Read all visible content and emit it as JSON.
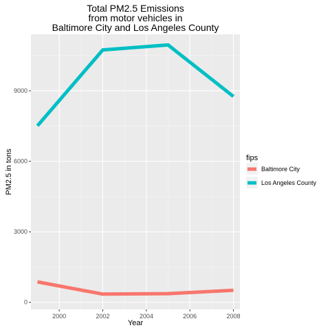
{
  "chart_data": {
    "type": "line",
    "title_lines": [
      "Total PM2.5 Emissions",
      "from motor vehicles in",
      "Baltimore City and Los Angeles County"
    ],
    "xlabel": "Year",
    "ylabel": "PM2.5 in tons",
    "x": [
      1999,
      2002,
      2005,
      2008
    ],
    "x_ticks": [
      "2000",
      "2002",
      "2004",
      "2006",
      "2008"
    ],
    "y_ticks": [
      "0",
      "3000",
      "6000",
      "9000"
    ],
    "xlim": [
      1998.7,
      2008.3
    ],
    "ylim": [
      -300,
      11400
    ],
    "grid": true,
    "legend_position": "right",
    "legend_title": "fips",
    "series": [
      {
        "name": "Baltimore City",
        "color": "#F8766D",
        "values": [
          870,
          350,
          370,
          510
        ]
      },
      {
        "name": "Los Angeles County",
        "color": "#00BFC4",
        "values": [
          7510,
          10740,
          10950,
          8760
        ]
      }
    ]
  }
}
